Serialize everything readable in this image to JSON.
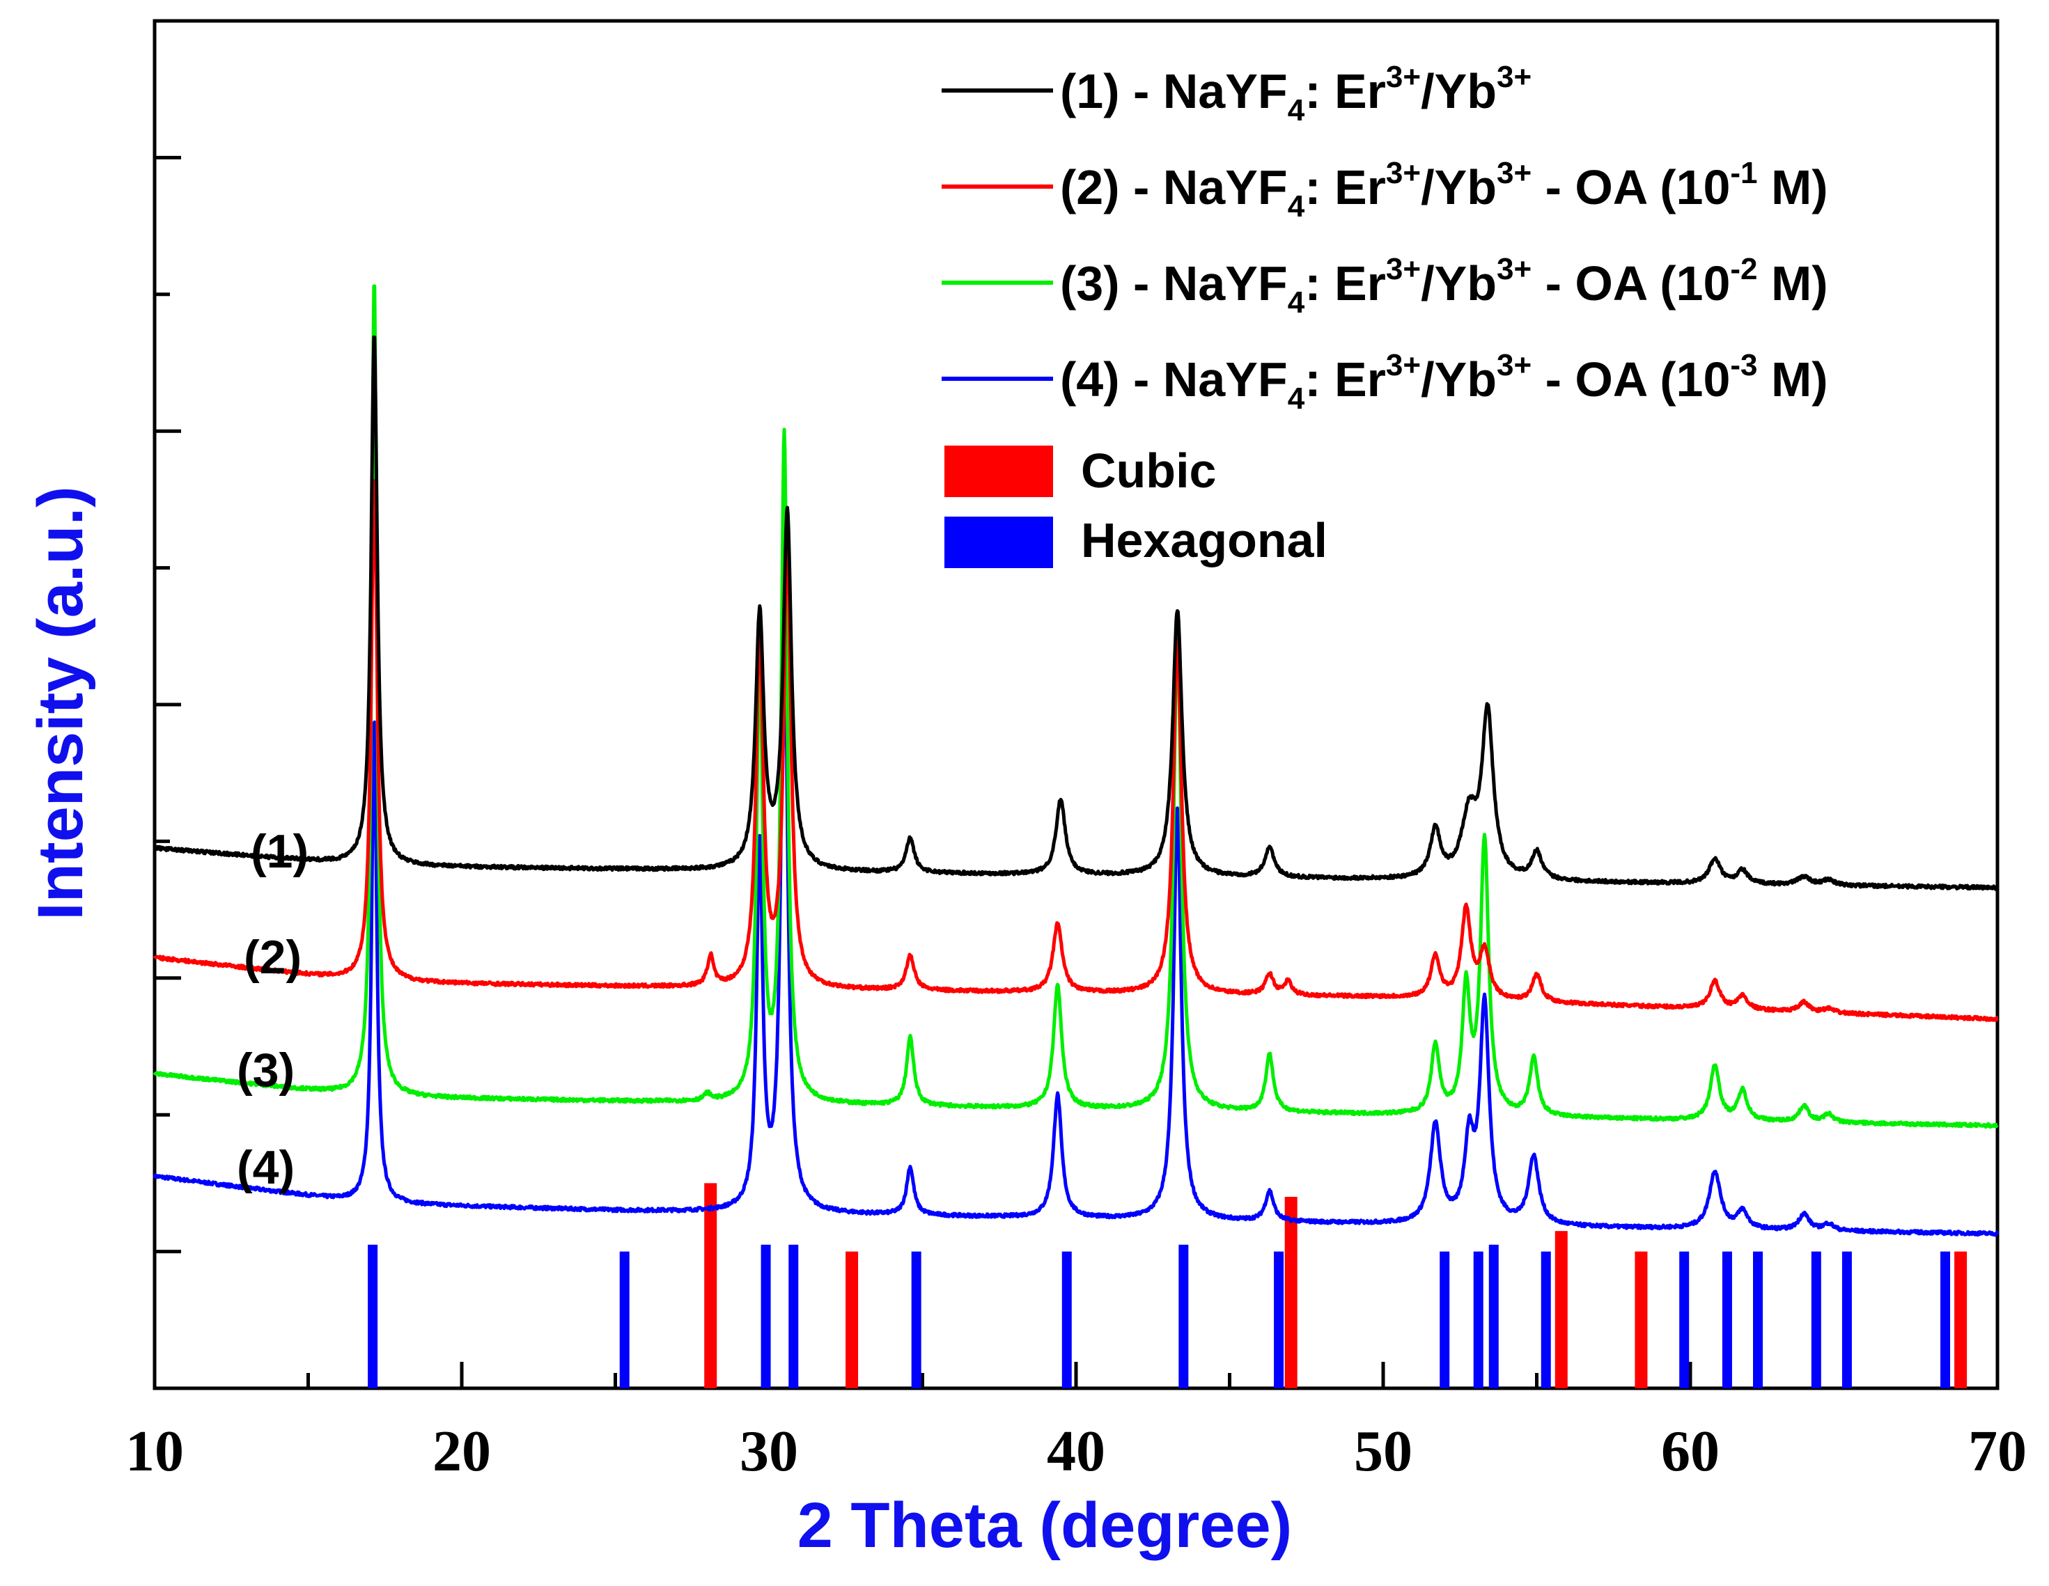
{
  "chart_data": {
    "type": "line",
    "title": "",
    "xlabel": "2 Theta (degree)",
    "ylabel": "Intensity (a.u.)",
    "xlim": [
      10,
      70
    ],
    "ylim": [
      0,
      10
    ],
    "x_ticks": [
      "10",
      "20",
      "30",
      "40",
      "50",
      "60",
      "70"
    ],
    "y_tick_labels": false,
    "colors": {
      "series1": "#000000",
      "series2": "#ff0000",
      "series3": "#00ee00",
      "series4": "#0000ff",
      "cubic": "#ff0000",
      "hexagonal": "#0000ff",
      "axis_title": "#1010ee"
    },
    "series": [
      {
        "id": "s1",
        "label": "(1)",
        "legend": {
          "prefix": "(1) - NaYF",
          "sub": "4",
          "mid1": ": Er",
          "sup1": "3+",
          "mid2": "/Yb",
          "sup2": "3+",
          "suffix": "",
          "sup3": "",
          "end": ""
        },
        "color": "#000000",
        "baseline": [
          [
            10,
            3.95
          ],
          [
            17,
            3.82
          ],
          [
            30,
            3.78
          ],
          [
            50,
            3.72
          ],
          [
            70,
            3.66
          ]
        ],
        "noise": 0.012,
        "peaks": [
          [
            17.15,
            3.9,
            0.12
          ],
          [
            29.7,
            1.85,
            0.16
          ],
          [
            30.6,
            2.6,
            0.16
          ],
          [
            34.6,
            0.25,
            0.16
          ],
          [
            39.5,
            0.55,
            0.18
          ],
          [
            43.3,
            1.95,
            0.18
          ],
          [
            46.3,
            0.22,
            0.18
          ],
          [
            51.7,
            0.35,
            0.2
          ],
          [
            52.8,
            0.45,
            0.3
          ],
          [
            53.4,
            1.2,
            0.22
          ],
          [
            55.0,
            0.2,
            0.2
          ],
          [
            60.8,
            0.18,
            0.22
          ],
          [
            61.7,
            0.1,
            0.2
          ],
          [
            63.7,
            0.06,
            0.25
          ],
          [
            64.5,
            0.04,
            0.2
          ]
        ]
      },
      {
        "id": "s2",
        "label": "(2)",
        "legend": {
          "prefix": "(2) - NaYF",
          "sub": "4",
          "mid1": ": Er",
          "sup1": "3+",
          "mid2": "/Yb",
          "sup2": "3+",
          "suffix": " - OA (10",
          "sup3": "-1",
          "end": " M)"
        },
        "color": "#ff0000",
        "baseline": [
          [
            10,
            3.15
          ],
          [
            17,
            2.97
          ],
          [
            30,
            2.92
          ],
          [
            50,
            2.86
          ],
          [
            70,
            2.7
          ]
        ],
        "noise": 0.012,
        "peaks": [
          [
            17.15,
            3.7,
            0.12
          ],
          [
            28.1,
            0.22,
            0.12
          ],
          [
            29.7,
            2.6,
            0.14
          ],
          [
            30.6,
            3.3,
            0.14
          ],
          [
            34.6,
            0.25,
            0.16
          ],
          [
            39.4,
            0.5,
            0.18
          ],
          [
            43.3,
            2.6,
            0.16
          ],
          [
            46.3,
            0.15,
            0.16
          ],
          [
            46.9,
            0.1,
            0.14
          ],
          [
            51.7,
            0.3,
            0.18
          ],
          [
            52.7,
            0.65,
            0.18
          ],
          [
            53.3,
            0.35,
            0.2
          ],
          [
            55.0,
            0.2,
            0.18
          ],
          [
            60.8,
            0.2,
            0.2
          ],
          [
            61.7,
            0.1,
            0.2
          ],
          [
            63.7,
            0.07,
            0.2
          ],
          [
            64.5,
            0.03,
            0.2
          ]
        ]
      },
      {
        "id": "s3",
        "label": "(3)",
        "legend": {
          "prefix": "(3) - NaYF",
          "sub": "4",
          "mid1": ": Er",
          "sup1": "3+",
          "mid2": "/Yb",
          "sup2": "3+",
          "suffix": " - OA (10",
          "sup3": "-2",
          "end": " M)"
        },
        "color": "#00ee00",
        "baseline": [
          [
            10,
            2.3
          ],
          [
            17,
            2.13
          ],
          [
            30,
            2.08
          ],
          [
            50,
            2.0
          ],
          [
            70,
            1.92
          ]
        ],
        "noise": 0.012,
        "peaks": [
          [
            17.15,
            6.0,
            0.1
          ],
          [
            28.0,
            0.05,
            0.12
          ],
          [
            29.7,
            3.25,
            0.12
          ],
          [
            30.5,
            4.85,
            0.12
          ],
          [
            34.6,
            0.5,
            0.14
          ],
          [
            39.4,
            0.9,
            0.16
          ],
          [
            43.3,
            3.5,
            0.15
          ],
          [
            46.3,
            0.42,
            0.15
          ],
          [
            51.7,
            0.5,
            0.16
          ],
          [
            52.7,
            0.9,
            0.15
          ],
          [
            53.3,
            2.0,
            0.16
          ],
          [
            54.9,
            0.42,
            0.16
          ],
          [
            60.8,
            0.4,
            0.18
          ],
          [
            61.7,
            0.22,
            0.18
          ],
          [
            63.7,
            0.12,
            0.18
          ],
          [
            64.5,
            0.06,
            0.18
          ]
        ]
      },
      {
        "id": "s4",
        "label": "(4)",
        "legend": {
          "prefix": "(4) - NaYF",
          "sub": "4",
          "mid1": ": Er",
          "sup1": "3+",
          "mid2": "/Yb",
          "sup2": "3+",
          "suffix": " - OA (10",
          "sup3": "-3",
          "end": " M)"
        },
        "color": "#0000ff",
        "baseline": [
          [
            10,
            1.55
          ],
          [
            17,
            1.35
          ],
          [
            25,
            1.3
          ],
          [
            30,
            1.28
          ],
          [
            50,
            1.2
          ],
          [
            70,
            1.13
          ]
        ],
        "noise": 0.012,
        "peaks": [
          [
            17.15,
            3.55,
            0.1
          ],
          [
            29.7,
            2.65,
            0.12
          ],
          [
            30.5,
            4.6,
            0.13
          ],
          [
            34.6,
            0.35,
            0.14
          ],
          [
            39.4,
            0.9,
            0.16
          ],
          [
            43.3,
            3.0,
            0.15
          ],
          [
            46.3,
            0.22,
            0.16
          ],
          [
            51.7,
            0.72,
            0.2
          ],
          [
            52.8,
            0.58,
            0.18
          ],
          [
            53.3,
            1.6,
            0.18
          ],
          [
            54.9,
            0.5,
            0.2
          ],
          [
            60.8,
            0.42,
            0.22
          ],
          [
            61.7,
            0.13,
            0.2
          ],
          [
            63.7,
            0.12,
            0.2
          ],
          [
            64.5,
            0.05,
            0.2
          ]
        ]
      }
    ],
    "reference_sticks": {
      "cubic": {
        "label": "Cubic",
        "color": "#ff0000",
        "positions": [
          [
            28.1,
            1.5
          ],
          [
            32.7,
            1.0
          ],
          [
            47.0,
            1.4
          ],
          [
            55.8,
            1.15
          ],
          [
            58.4,
            1.0
          ],
          [
            68.8,
            1.0
          ]
        ]
      },
      "hexagonal": {
        "label": "Hexagonal",
        "color": "#0000ff",
        "positions": [
          [
            17.1,
            1.05
          ],
          [
            25.3,
            1.0
          ],
          [
            29.9,
            1.05
          ],
          [
            30.8,
            1.05
          ],
          [
            34.8,
            1.0
          ],
          [
            39.7,
            1.0
          ],
          [
            43.5,
            1.05
          ],
          [
            46.6,
            1.0
          ],
          [
            52.0,
            1.0
          ],
          [
            53.1,
            1.0
          ],
          [
            53.6,
            1.05
          ],
          [
            55.3,
            1.0
          ],
          [
            59.8,
            1.0
          ],
          [
            61.2,
            1.0
          ],
          [
            62.2,
            1.0
          ],
          [
            64.1,
            1.0
          ],
          [
            65.1,
            1.0
          ],
          [
            68.3,
            1.0
          ]
        ]
      }
    },
    "legend_placement": "top-right"
  }
}
